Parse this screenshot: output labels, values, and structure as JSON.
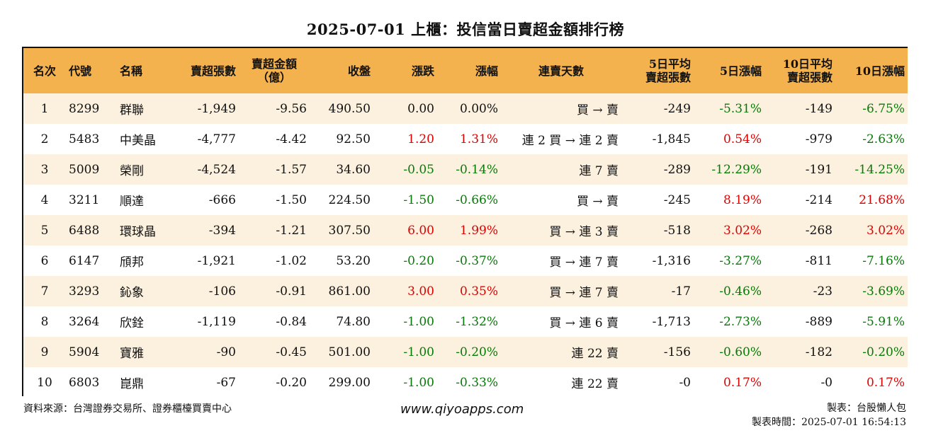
{
  "title": "2025-07-01 上櫃：投信當日賣超金額排行榜",
  "columns": {
    "rank": "名次",
    "code": "代號",
    "name": "名稱",
    "oversell_lots": "賣超張數",
    "oversell_amount_1": "賣超金額",
    "oversell_amount_2": "（億）",
    "close": "收盤",
    "change": "漲跌",
    "change_pct": "漲幅",
    "streak": "連賣天數",
    "avg5_1": "5日平均",
    "avg5_2": "賣超張數",
    "pct5": "5日漲幅",
    "avg10_1": "10日平均",
    "avg10_2": "賣超張數",
    "pct10": "10日漲幅"
  },
  "rows": [
    {
      "rank": "1",
      "code": "8299",
      "name": "群聯",
      "lots": "-1,949",
      "amount": "-9.56",
      "close": "490.50",
      "change": "0.00",
      "change_pct": "0.00%",
      "streak": "買 → 賣",
      "avg5": "-249",
      "pct5": "-5.31%",
      "avg10": "-149",
      "pct10": "-6.75%"
    },
    {
      "rank": "2",
      "code": "5483",
      "name": "中美晶",
      "lots": "-4,777",
      "amount": "-4.42",
      "close": "92.50",
      "change": "1.20",
      "change_pct": "1.31%",
      "streak": "連 2 買 → 連 2 賣",
      "avg5": "-1,845",
      "pct5": "0.54%",
      "avg10": "-979",
      "pct10": "-2.63%"
    },
    {
      "rank": "3",
      "code": "5009",
      "name": "榮剛",
      "lots": "-4,524",
      "amount": "-1.57",
      "close": "34.60",
      "change": "-0.05",
      "change_pct": "-0.14%",
      "streak": "連 7 賣",
      "avg5": "-289",
      "pct5": "-12.29%",
      "avg10": "-191",
      "pct10": "-14.25%"
    },
    {
      "rank": "4",
      "code": "3211",
      "name": "順達",
      "lots": "-666",
      "amount": "-1.50",
      "close": "224.50",
      "change": "-1.50",
      "change_pct": "-0.66%",
      "streak": "買 → 賣",
      "avg5": "-245",
      "pct5": "8.19%",
      "avg10": "-214",
      "pct10": "21.68%"
    },
    {
      "rank": "5",
      "code": "6488",
      "name": "環球晶",
      "lots": "-394",
      "amount": "-1.21",
      "close": "307.50",
      "change": "6.00",
      "change_pct": "1.99%",
      "streak": "買 → 連 3 賣",
      "avg5": "-518",
      "pct5": "3.02%",
      "avg10": "-268",
      "pct10": "3.02%"
    },
    {
      "rank": "6",
      "code": "6147",
      "name": "頎邦",
      "lots": "-1,921",
      "amount": "-1.02",
      "close": "53.20",
      "change": "-0.20",
      "change_pct": "-0.37%",
      "streak": "買 → 連 7 賣",
      "avg5": "-1,316",
      "pct5": "-3.27%",
      "avg10": "-811",
      "pct10": "-7.16%"
    },
    {
      "rank": "7",
      "code": "3293",
      "name": "鈊象",
      "lots": "-106",
      "amount": "-0.91",
      "close": "861.00",
      "change": "3.00",
      "change_pct": "0.35%",
      "streak": "買 → 連 7 賣",
      "avg5": "-17",
      "pct5": "-0.46%",
      "avg10": "-23",
      "pct10": "-3.69%"
    },
    {
      "rank": "8",
      "code": "3264",
      "name": "欣銓",
      "lots": "-1,119",
      "amount": "-0.84",
      "close": "74.80",
      "change": "-1.00",
      "change_pct": "-1.32%",
      "streak": "買 → 連 6 賣",
      "avg5": "-1,713",
      "pct5": "-2.73%",
      "avg10": "-889",
      "pct10": "-5.91%"
    },
    {
      "rank": "9",
      "code": "5904",
      "name": "寶雅",
      "lots": "-90",
      "amount": "-0.45",
      "close": "501.00",
      "change": "-1.00",
      "change_pct": "-0.20%",
      "streak": "連 22 賣",
      "avg5": "-156",
      "pct5": "-0.60%",
      "avg10": "-182",
      "pct10": "-0.20%"
    },
    {
      "rank": "10",
      "code": "6803",
      "name": "崑鼎",
      "lots": "-67",
      "amount": "-0.20",
      "close": "299.00",
      "change": "-1.00",
      "change_pct": "-0.33%",
      "streak": "連 22 賣",
      "avg5": "-0",
      "pct5": "0.17%",
      "avg10": "-0",
      "pct10": "0.17%"
    }
  ],
  "colors": {
    "header_bg": "#f4b24e",
    "stripe_bg": "#fcf1df",
    "positive": "#e00000",
    "negative": "#067a06"
  },
  "footer": {
    "source": "資料來源：台灣證券交易所、證券櫃檯買賣中心",
    "website": "www.qiyoapps.com",
    "author": "製表：台股懶人包",
    "made_time": "製表時間：2025-07-01 16:54:13"
  }
}
